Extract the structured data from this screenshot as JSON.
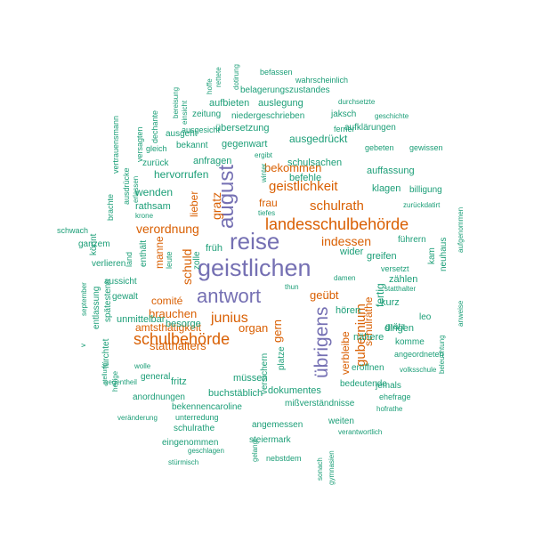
{
  "colors": {
    "purple": "#7570b3",
    "orange": "#d95f02",
    "green": "#1b9e77"
  },
  "words": [
    {
      "text": "geistlichen",
      "color": "purple"
    },
    {
      "text": "reise",
      "color": "purple"
    },
    {
      "text": "august",
      "color": "purple"
    },
    {
      "text": "antwort",
      "color": "purple"
    },
    {
      "text": "übrigens",
      "color": "purple"
    },
    {
      "text": "landesschulbehörde",
      "color": "orange"
    },
    {
      "text": "schulbehörde",
      "color": "orange"
    },
    {
      "text": "junius",
      "color": "orange"
    },
    {
      "text": "gubernium",
      "color": "orange"
    },
    {
      "text": "geistlichkeit",
      "color": "orange"
    },
    {
      "text": "schulrath",
      "color": "orange"
    },
    {
      "text": "verordnung",
      "color": "orange"
    },
    {
      "text": "indessen",
      "color": "orange"
    },
    {
      "text": "gratz",
      "color": "orange"
    },
    {
      "text": "schuld",
      "color": "orange"
    },
    {
      "text": "bekommen",
      "color": "orange"
    },
    {
      "text": "organ",
      "color": "orange"
    },
    {
      "text": "geübt",
      "color": "orange"
    },
    {
      "text": "gern",
      "color": "orange"
    },
    {
      "text": "statthalters",
      "color": "orange"
    },
    {
      "text": "brauchen",
      "color": "orange"
    },
    {
      "text": "amtsthätigkeit",
      "color": "orange"
    },
    {
      "text": "schulräthe",
      "color": "orange"
    },
    {
      "text": "verbleibe",
      "color": "orange"
    },
    {
      "text": "manne",
      "color": "orange"
    },
    {
      "text": "comité",
      "color": "orange"
    },
    {
      "text": "lieber",
      "color": "orange"
    },
    {
      "text": "frau",
      "color": "orange"
    },
    {
      "text": "wahrscheinlich",
      "color": "green"
    },
    {
      "text": "befassen",
      "color": "green"
    },
    {
      "text": "belagerungszustandes",
      "color": "green"
    },
    {
      "text": "niedergeschrieben",
      "color": "green"
    },
    {
      "text": "aufbieten",
      "color": "green"
    },
    {
      "text": "auslegung",
      "color": "green"
    },
    {
      "text": "zeitung",
      "color": "green"
    },
    {
      "text": "jaksch",
      "color": "green"
    },
    {
      "text": "geschichte",
      "color": "green"
    },
    {
      "text": "durchsetzte",
      "color": "green"
    },
    {
      "text": "ferner",
      "color": "green"
    },
    {
      "text": "aufklärungen",
      "color": "green"
    },
    {
      "text": "übersetzung",
      "color": "green"
    },
    {
      "text": "ausgesicht",
      "color": "green"
    },
    {
      "text": "ausgeht",
      "color": "green"
    },
    {
      "text": "bekannt",
      "color": "green"
    },
    {
      "text": "gegenwart",
      "color": "green"
    },
    {
      "text": "ausgedrückt",
      "color": "green"
    },
    {
      "text": "gleich",
      "color": "green"
    },
    {
      "text": "zurück",
      "color": "green"
    },
    {
      "text": "anfragen",
      "color": "green"
    },
    {
      "text": "hervorrufen",
      "color": "green"
    },
    {
      "text": "ergibt",
      "color": "green"
    },
    {
      "text": "schulsachen",
      "color": "green"
    },
    {
      "text": "gebeten",
      "color": "green"
    },
    {
      "text": "gewissen",
      "color": "green"
    },
    {
      "text": "auffassung",
      "color": "green"
    },
    {
      "text": "befehle",
      "color": "green"
    },
    {
      "text": "wenden",
      "color": "green"
    },
    {
      "text": "rathsam",
      "color": "green"
    },
    {
      "text": "krone",
      "color": "green"
    },
    {
      "text": "klagen",
      "color": "green"
    },
    {
      "text": "billigung",
      "color": "green"
    },
    {
      "text": "zurückdatirt",
      "color": "green"
    },
    {
      "text": "schwach",
      "color": "green"
    },
    {
      "text": "ganzem",
      "color": "green"
    },
    {
      "text": "verlieren",
      "color": "green"
    },
    {
      "text": "aussicht",
      "color": "green"
    },
    {
      "text": "gewalt",
      "color": "green"
    },
    {
      "text": "früh",
      "color": "green"
    },
    {
      "text": "wider",
      "color": "green"
    },
    {
      "text": "führern",
      "color": "green"
    },
    {
      "text": "greifen",
      "color": "green"
    },
    {
      "text": "versetzt",
      "color": "green"
    },
    {
      "text": "zählen",
      "color": "green"
    },
    {
      "text": "statthalter",
      "color": "green"
    },
    {
      "text": "damen",
      "color": "green"
    },
    {
      "text": "thun",
      "color": "green"
    },
    {
      "text": "kurz",
      "color": "green"
    },
    {
      "text": "besorge",
      "color": "green"
    },
    {
      "text": "unmittelbar",
      "color": "green"
    },
    {
      "text": "hören",
      "color": "green"
    },
    {
      "text": "leo",
      "color": "green"
    },
    {
      "text": "grätz",
      "color": "green"
    },
    {
      "text": "nähere",
      "color": "green"
    },
    {
      "text": "dingen",
      "color": "green"
    },
    {
      "text": "komme",
      "color": "green"
    },
    {
      "text": "eröffnen",
      "color": "green"
    },
    {
      "text": "volksschule",
      "color": "green"
    },
    {
      "text": "wolle",
      "color": "green"
    },
    {
      "text": "general",
      "color": "green"
    },
    {
      "text": "fritz",
      "color": "green"
    },
    {
      "text": "bedeutende",
      "color": "green"
    },
    {
      "text": "jemals",
      "color": "green"
    },
    {
      "text": "ehefrage",
      "color": "green"
    },
    {
      "text": "hofrathe",
      "color": "green"
    },
    {
      "text": "dokumentes",
      "color": "green"
    },
    {
      "text": "müssen",
      "color": "green"
    },
    {
      "text": "anordnungen",
      "color": "green"
    },
    {
      "text": "bekennencaroline",
      "color": "green"
    },
    {
      "text": "buchstäblich",
      "color": "green"
    },
    {
      "text": "mißverständnisse",
      "color": "green"
    },
    {
      "text": "veränderung",
      "color": "green"
    },
    {
      "text": "unterredung",
      "color": "green"
    },
    {
      "text": "weiten",
      "color": "green"
    },
    {
      "text": "schulrathe",
      "color": "green"
    },
    {
      "text": "angemessen",
      "color": "green"
    },
    {
      "text": "verantwortlich",
      "color": "green"
    },
    {
      "text": "eingenommen",
      "color": "green"
    },
    {
      "text": "steiermark",
      "color": "green"
    },
    {
      "text": "geschlagen",
      "color": "green"
    },
    {
      "text": "nebstdem",
      "color": "green"
    },
    {
      "text": "stürmisch",
      "color": "green"
    },
    {
      "text": "angeordneten",
      "color": "green"
    },
    {
      "text": "könnt",
      "color": "green"
    },
    {
      "text": "vertrauensmann",
      "color": "green"
    },
    {
      "text": "versagten",
      "color": "green"
    },
    {
      "text": "dechante",
      "color": "green"
    },
    {
      "text": "bereisung",
      "color": "green"
    },
    {
      "text": "einsicht",
      "color": "green"
    },
    {
      "text": "hoffe",
      "color": "green"
    },
    {
      "text": "rettete",
      "color": "green"
    },
    {
      "text": "dotirung",
      "color": "green"
    },
    {
      "text": "brachte",
      "color": "green"
    },
    {
      "text": "ausdrücke",
      "color": "green"
    },
    {
      "text": "erlassen",
      "color": "green"
    },
    {
      "text": "land",
      "color": "green"
    },
    {
      "text": "enthält",
      "color": "green"
    },
    {
      "text": "leute",
      "color": "green"
    },
    {
      "text": "zolle",
      "color": "green"
    },
    {
      "text": "winter",
      "color": "green"
    },
    {
      "text": "tiefes",
      "color": "green"
    },
    {
      "text": "v",
      "color": "green"
    },
    {
      "text": "september",
      "color": "green"
    },
    {
      "text": "entlassung",
      "color": "green"
    },
    {
      "text": "spätestens",
      "color": "green"
    },
    {
      "text": "fürchtet",
      "color": "green"
    },
    {
      "text": "gegentheil",
      "color": "green"
    },
    {
      "text": "stellung",
      "color": "green"
    },
    {
      "text": "heilige",
      "color": "green"
    },
    {
      "text": "versichern",
      "color": "green"
    },
    {
      "text": "platze",
      "color": "green"
    },
    {
      "text": "fertig",
      "color": "green"
    },
    {
      "text": "kam",
      "color": "green"
    },
    {
      "text": "neuhaus",
      "color": "green"
    },
    {
      "text": "aufgenommen",
      "color": "green"
    },
    {
      "text": "anweise",
      "color": "green"
    },
    {
      "text": "beleuchtung",
      "color": "green"
    },
    {
      "text": "gelangt",
      "color": "green"
    },
    {
      "text": "sonach",
      "color": "green"
    },
    {
      "text": "gymnasien",
      "color": "green"
    },
    {
      "text": "verband",
      "color": "green"
    }
  ]
}
